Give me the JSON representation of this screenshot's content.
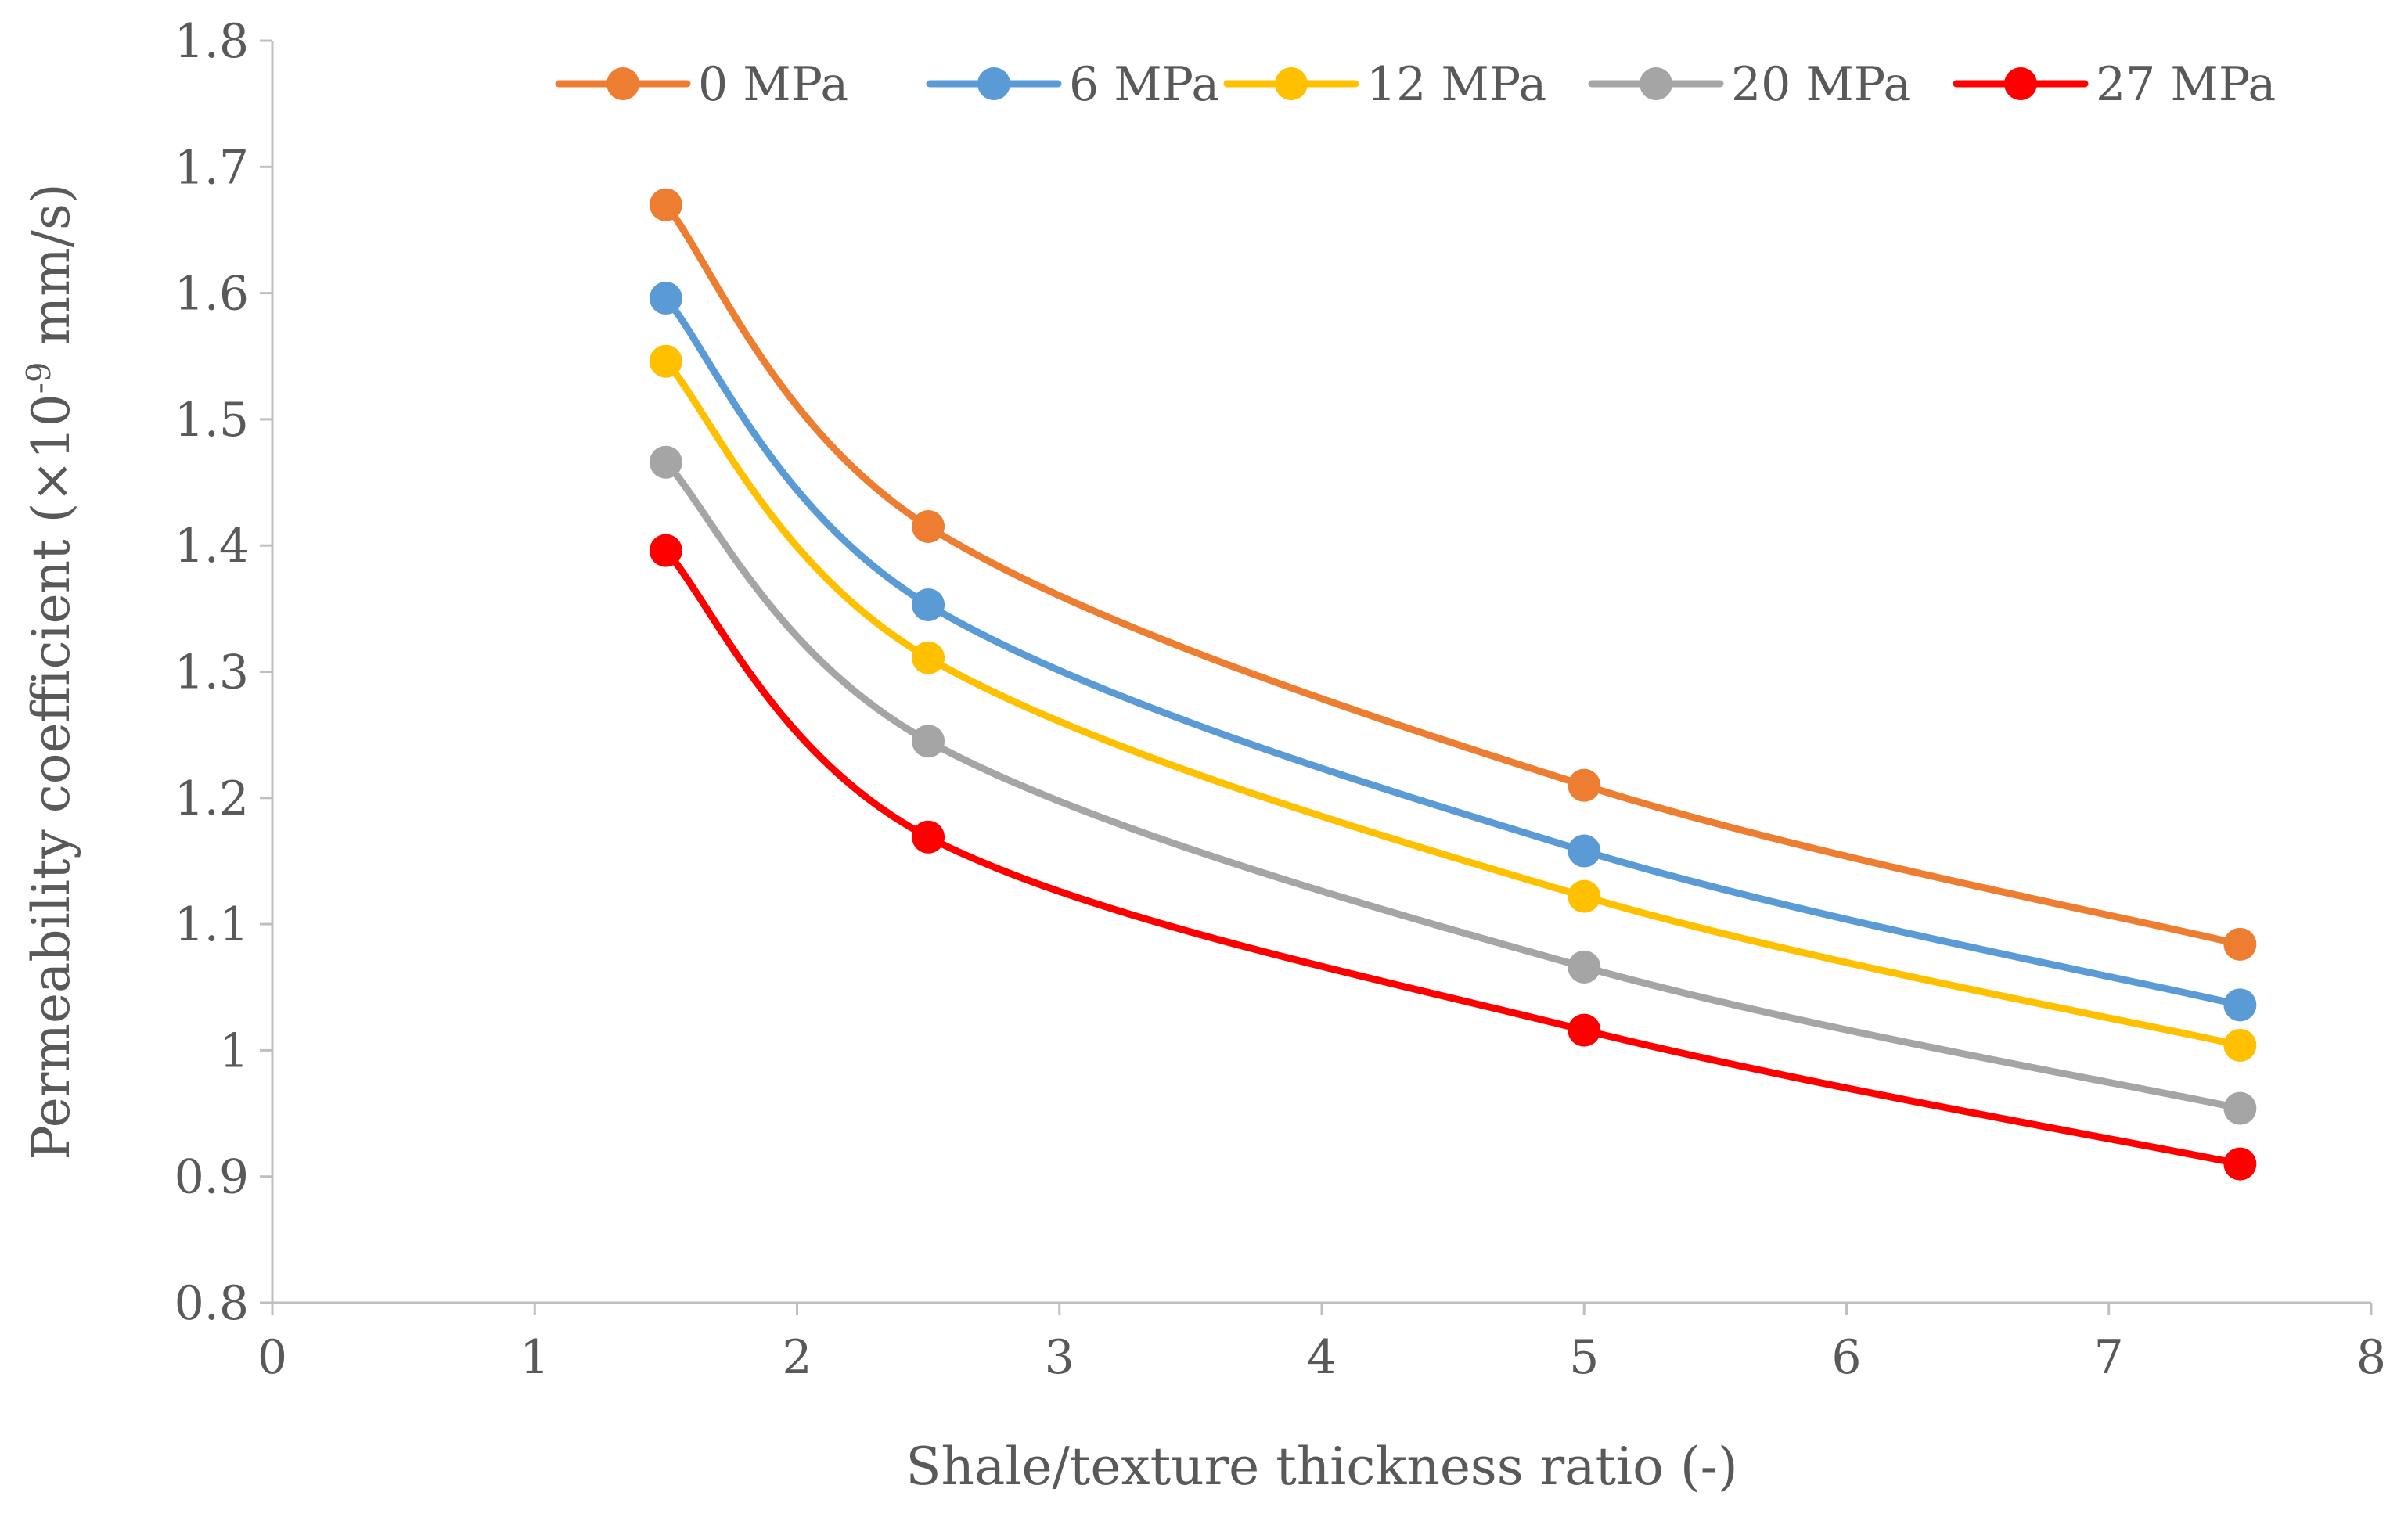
{
  "chart_data": {
    "type": "line",
    "title": "",
    "xlabel": "Shale/texture thickness ratio (-)",
    "ylabel": {
      "prefix": "Permeability coefficient (×10",
      "superscript": "-9",
      "suffix": " mm/s)"
    },
    "xlim": [
      0,
      8
    ],
    "ylim": [
      0.8,
      1.8
    ],
    "x_ticks": [
      "0",
      "1",
      "2",
      "3",
      "4",
      "5",
      "6",
      "7",
      "8"
    ],
    "y_ticks": [
      "0.8",
      "0.9",
      "1",
      "1.1",
      "1.2",
      "1.3",
      "1.4",
      "1.5",
      "1.6",
      "1.7",
      "1.8"
    ],
    "grid": false,
    "smooth": true,
    "legend_position": "top",
    "x": [
      1.5,
      2.5,
      5,
      7.5
    ],
    "series": [
      {
        "name": "0 MPa",
        "color": "#ED7D31",
        "values": [
          1.67,
          1.415,
          1.21,
          1.084
        ]
      },
      {
        "name": "6 MPa",
        "color": "#5B9BD5",
        "values": [
          1.596,
          1.353,
          1.158,
          1.036
        ]
      },
      {
        "name": "12 MPa",
        "color": "#FFC000",
        "values": [
          1.546,
          1.311,
          1.122,
          1.004
        ]
      },
      {
        "name": "20 MPa",
        "color": "#A5A5A5",
        "values": [
          1.466,
          1.245,
          1.066,
          0.954
        ]
      },
      {
        "name": "27 MPa",
        "color": "#FF0000",
        "values": [
          1.396,
          1.169,
          1.016,
          0.91
        ]
      }
    ]
  }
}
